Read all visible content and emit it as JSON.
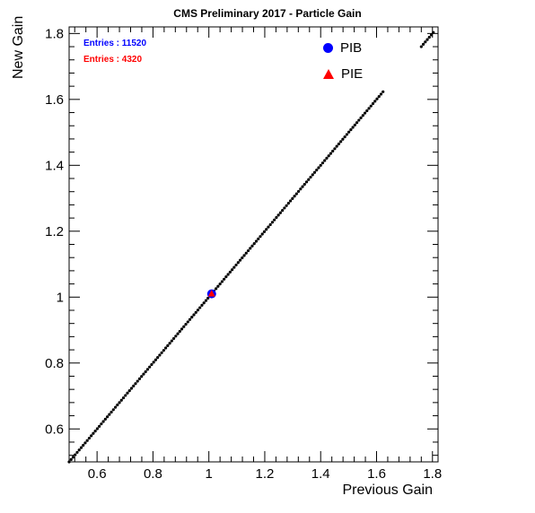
{
  "chart_data": {
    "type": "scatter",
    "title": "CMS Preliminary 2017  -  Particle Gain",
    "xlabel": "Previous Gain",
    "ylabel": "New Gain",
    "xlim": [
      0.5,
      1.82
    ],
    "ylim": [
      0.5,
      1.82
    ],
    "xticks": [
      "0.6",
      "0.8",
      "1",
      "1.2",
      "1.4",
      "1.6",
      "1.8"
    ],
    "yticks": [
      "0.6",
      "0.8",
      "1",
      "1.2",
      "1.4",
      "1.6",
      "1.8"
    ],
    "stats": [
      {
        "label": "Entries : 11520",
        "color": "#0000ff"
      },
      {
        "label": "Entries : 4320",
        "color": "#ff0000"
      }
    ],
    "series": [
      {
        "name": "PIB",
        "marker": "circle",
        "color": "#0000ff",
        "points": [
          [
            1.01,
            1.01
          ]
        ]
      },
      {
        "name": "PIE",
        "marker": "triangle",
        "color": "#ff0000",
        "points": [
          [
            1.01,
            1.01
          ]
        ]
      }
    ],
    "reference_line": {
      "color": "#000000",
      "x_from": 0.5,
      "x_to": 1.63,
      "x2_from": 1.76,
      "x2_to": 1.81
    }
  }
}
